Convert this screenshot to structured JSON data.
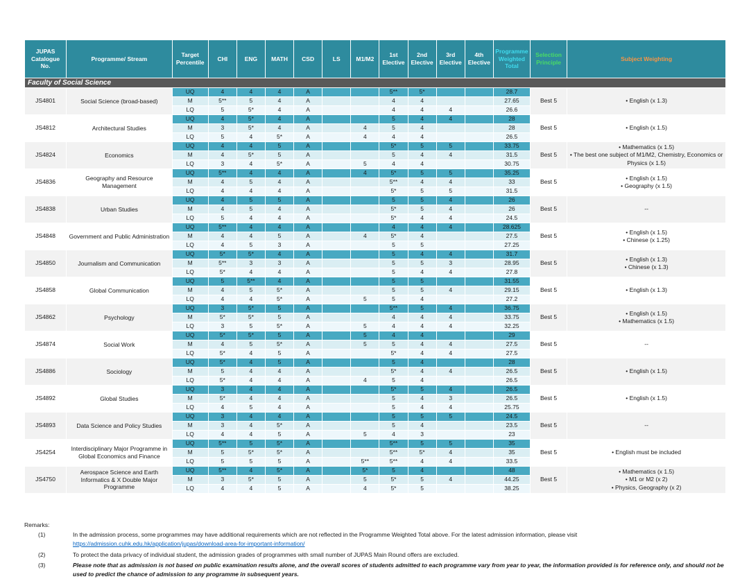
{
  "colors": {
    "header_bg": "#2E8B9E",
    "uq_bg": "#47A9C2",
    "m_bg": "#DAEEF3",
    "lq_bg": "#EDF7FB",
    "faculty_bg": "#595959",
    "accent_cyan": "#40DBEE",
    "accent_green": "#4ADB66",
    "accent_orange": "#F79646",
    "link_blue": "#0563C1"
  },
  "table": {
    "columns": [
      {
        "key": "code",
        "label": "JUPAS Catalogue No.",
        "accent": ""
      },
      {
        "key": "name",
        "label": "Programme/ Stream",
        "accent": ""
      },
      {
        "key": "target",
        "label": "Target Percentile",
        "accent": ""
      },
      {
        "key": "chi",
        "label": "CHI",
        "accent": ""
      },
      {
        "key": "eng",
        "label": "ENG",
        "accent": ""
      },
      {
        "key": "math",
        "label": "MATH",
        "accent": ""
      },
      {
        "key": "csd",
        "label": "CSD",
        "accent": ""
      },
      {
        "key": "ls",
        "label": "LS",
        "accent": ""
      },
      {
        "key": "m1m2",
        "label": "M1/M2",
        "accent": ""
      },
      {
        "key": "elective-1",
        "label": "1st Elective",
        "accent": ""
      },
      {
        "key": "elective-2",
        "label": "2nd Elective",
        "accent": ""
      },
      {
        "key": "elective-3",
        "label": "3rd Elective",
        "accent": ""
      },
      {
        "key": "elective-4",
        "label": "4th Elective",
        "accent": ""
      },
      {
        "key": "weighted-total",
        "label": "Programme Weighted Total",
        "accent": "cyan"
      },
      {
        "key": "selection",
        "label": "Selection Principle",
        "accent": "green"
      },
      {
        "key": "weighting",
        "label": "Subject Weighting",
        "accent": "orange"
      }
    ],
    "score_keys": [
      "chi",
      "eng",
      "math",
      "csd",
      "ls",
      "m1m2",
      "elective-1",
      "elective-2",
      "elective-3",
      "elective-4",
      "weighted-total"
    ],
    "faculty": "Faculty of Social Science",
    "programmes": [
      {
        "code": "JS4801",
        "name": "Social Science (broad-based)",
        "selection": "Best 5",
        "weighting": [
          "English (x 1.3)"
        ],
        "rows": [
          {
            "p": "UQ",
            "v": [
              "4",
              "4",
              "4",
              "A",
              "",
              "",
              "5**",
              "5*",
              "",
              "",
              "28.7"
            ]
          },
          {
            "p": "M",
            "v": [
              "5**",
              "5",
              "4",
              "A",
              "",
              "",
              "4",
              "4",
              "",
              "",
              "27.65"
            ]
          },
          {
            "p": "LQ",
            "v": [
              "5",
              "5*",
              "4",
              "A",
              "",
              "",
              "4",
              "4",
              "4",
              "",
              "26.6"
            ]
          }
        ]
      },
      {
        "code": "JS4812",
        "name": "Architectural Studies",
        "selection": "Best 5",
        "weighting": [
          "English (x 1.5)"
        ],
        "rows": [
          {
            "p": "UQ",
            "v": [
              "4",
              "5*",
              "4",
              "A",
              "",
              "",
              "5",
              "4",
              "4",
              "",
              "28"
            ]
          },
          {
            "p": "M",
            "v": [
              "3",
              "5*",
              "4",
              "A",
              "",
              "4",
              "5",
              "4",
              "",
              "",
              "28"
            ]
          },
          {
            "p": "LQ",
            "v": [
              "5",
              "4",
              "5*",
              "A",
              "",
              "4",
              "4",
              "4",
              "",
              "",
              "26.5"
            ]
          }
        ]
      },
      {
        "code": "JS4824",
        "name": "Economics",
        "selection": "Best 5",
        "weighting": [
          "Mathematics (x 1.5)",
          "The best one subject of M1/M2, Chemistry, Economics or Physics (x 1.5)"
        ],
        "rows": [
          {
            "p": "UQ",
            "v": [
              "4",
              "4",
              "5",
              "A",
              "",
              "",
              "5*",
              "5",
              "5",
              "",
              "33.75"
            ]
          },
          {
            "p": "M",
            "v": [
              "4",
              "5*",
              "5",
              "A",
              "",
              "",
              "5",
              "4",
              "4",
              "",
              "31.5"
            ]
          },
          {
            "p": "LQ",
            "v": [
              "3",
              "4",
              "5*",
              "A",
              "",
              "5",
              "4",
              "4",
              "",
              "",
              "30.75"
            ]
          }
        ]
      },
      {
        "code": "JS4836",
        "name": "Geography and Resource Management",
        "selection": "Best 5",
        "weighting": [
          "English (x 1.5)",
          "Geography (x 1.5)"
        ],
        "rows": [
          {
            "p": "UQ",
            "v": [
              "5**",
              "4",
              "4",
              "A",
              "",
              "4",
              "5*",
              "5",
              "5",
              "",
              "35.25"
            ]
          },
          {
            "p": "M",
            "v": [
              "4",
              "5",
              "4",
              "A",
              "",
              "",
              "5**",
              "4",
              "4",
              "",
              "33"
            ]
          },
          {
            "p": "LQ",
            "v": [
              "4",
              "4",
              "4",
              "A",
              "",
              "",
              "5*",
              "5",
              "5",
              "",
              "31.5"
            ]
          }
        ]
      },
      {
        "code": "JS4838",
        "name": "Urban Studies",
        "selection": "Best 5",
        "weighting": [
          "--"
        ],
        "rows": [
          {
            "p": "UQ",
            "v": [
              "4",
              "5",
              "5",
              "A",
              "",
              "",
              "5",
              "5",
              "4",
              "",
              "26"
            ]
          },
          {
            "p": "M",
            "v": [
              "4",
              "5",
              "4",
              "A",
              "",
              "",
              "5*",
              "5",
              "4",
              "",
              "26"
            ]
          },
          {
            "p": "LQ",
            "v": [
              "5",
              "4",
              "4",
              "A",
              "",
              "",
              "5*",
              "4",
              "4",
              "",
              "24.5"
            ]
          }
        ]
      },
      {
        "code": "JS4848",
        "name": "Government and Public Administration",
        "selection": "Best 5",
        "weighting": [
          "English (x 1.5)",
          "Chinese (x 1.25)"
        ],
        "rows": [
          {
            "p": "UQ",
            "v": [
              "5**",
              "4",
              "4",
              "A",
              "",
              "",
              "4",
              "4",
              "4",
              "",
              "28.625"
            ]
          },
          {
            "p": "M",
            "v": [
              "4",
              "4",
              "5",
              "A",
              "",
              "4",
              "5*",
              "4",
              "",
              "",
              "27.5"
            ]
          },
          {
            "p": "LQ",
            "v": [
              "4",
              "5",
              "3",
              "A",
              "",
              "",
              "5",
              "5",
              "",
              "",
              "27.25"
            ]
          }
        ]
      },
      {
        "code": "JS4850",
        "name": "Journalism and Communication",
        "selection": "Best 5",
        "weighting": [
          "English (x 1.3)",
          "Chinese (x 1.3)"
        ],
        "rows": [
          {
            "p": "UQ",
            "v": [
              "5*",
              "5*",
              "4",
              "A",
              "",
              "",
              "5",
              "4",
              "4",
              "",
              "31.7"
            ]
          },
          {
            "p": "M",
            "v": [
              "5**",
              "3",
              "3",
              "A",
              "",
              "",
              "5",
              "5",
              "3",
              "",
              "28.95"
            ]
          },
          {
            "p": "LQ",
            "v": [
              "5*",
              "4",
              "4",
              "A",
              "",
              "",
              "5",
              "4",
              "4",
              "",
              "27.8"
            ]
          }
        ]
      },
      {
        "code": "JS4858",
        "name": "Global Communication",
        "selection": "Best 5",
        "weighting": [
          "English (x 1.3)"
        ],
        "rows": [
          {
            "p": "UQ",
            "v": [
              "5",
              "5**",
              "4",
              "A",
              "",
              "",
              "5",
              "5",
              "",
              "",
              "31.55"
            ]
          },
          {
            "p": "M",
            "v": [
              "4",
              "5",
              "5*",
              "A",
              "",
              "",
              "5",
              "5",
              "4",
              "",
              "29.15"
            ]
          },
          {
            "p": "LQ",
            "v": [
              "4",
              "4",
              "5*",
              "A",
              "",
              "5",
              "5",
              "4",
              "",
              "",
              "27.2"
            ]
          }
        ]
      },
      {
        "code": "JS4862",
        "name": "Psychology",
        "selection": "Best 5",
        "weighting": [
          "English (x 1.5)",
          "Mathematics (x 1.5)"
        ],
        "rows": [
          {
            "p": "UQ",
            "v": [
              "3",
              "5*",
              "5",
              "A",
              "",
              "",
              "5**",
              "5",
              "4",
              "",
              "36.75"
            ]
          },
          {
            "p": "M",
            "v": [
              "5*",
              "5*",
              "5",
              "A",
              "",
              "",
              "4",
              "4",
              "4",
              "",
              "33.75"
            ]
          },
          {
            "p": "LQ",
            "v": [
              "3",
              "5",
              "5*",
              "A",
              "",
              "5",
              "4",
              "4",
              "4",
              "",
              "32.25"
            ]
          }
        ]
      },
      {
        "code": "JS4874",
        "name": "Social Work",
        "selection": "Best 5",
        "weighting": [
          "--"
        ],
        "rows": [
          {
            "p": "UQ",
            "v": [
              "5*",
              "5*",
              "5",
              "A",
              "",
              "5",
              "4",
              "4",
              "",
              "",
              "29"
            ]
          },
          {
            "p": "M",
            "v": [
              "4",
              "5",
              "5*",
              "A",
              "",
              "5",
              "5",
              "4",
              "4",
              "",
              "27.5"
            ]
          },
          {
            "p": "LQ",
            "v": [
              "5*",
              "4",
              "5",
              "A",
              "",
              "",
              "5*",
              "4",
              "4",
              "",
              "27.5"
            ]
          }
        ]
      },
      {
        "code": "JS4886",
        "name": "Sociology",
        "selection": "Best 5",
        "weighting": [
          "English (x 1.5)"
        ],
        "rows": [
          {
            "p": "UQ",
            "v": [
              "5*",
              "4",
              "5",
              "A",
              "",
              "",
              "5",
              "4",
              "",
              "",
              "28"
            ]
          },
          {
            "p": "M",
            "v": [
              "5",
              "4",
              "4",
              "A",
              "",
              "",
              "5*",
              "4",
              "4",
              "",
              "26.5"
            ]
          },
          {
            "p": "LQ",
            "v": [
              "5*",
              "4",
              "4",
              "A",
              "",
              "4",
              "5",
              "4",
              "",
              "",
              "26.5"
            ]
          }
        ]
      },
      {
        "code": "JS4892",
        "name": "Global Studies",
        "selection": "Best 5",
        "weighting": [
          "English (x 1.5)"
        ],
        "rows": [
          {
            "p": "UQ",
            "v": [
              "3",
              "4",
              "4",
              "A",
              "",
              "",
              "5*",
              "5",
              "4",
              "",
              "26.5"
            ]
          },
          {
            "p": "M",
            "v": [
              "5*",
              "4",
              "4",
              "A",
              "",
              "",
              "5",
              "4",
              "3",
              "",
              "26.5"
            ]
          },
          {
            "p": "LQ",
            "v": [
              "4",
              "5",
              "4",
              "A",
              "",
              "",
              "5",
              "4",
              "4",
              "",
              "25.75"
            ]
          }
        ]
      },
      {
        "code": "JS4893",
        "name": "Data Science and Policy Studies",
        "selection": "Best 5",
        "weighting": [
          "--"
        ],
        "rows": [
          {
            "p": "UQ",
            "v": [
              "3",
              "4",
              "4",
              "A",
              "",
              "",
              "5",
              "5",
              "5",
              "",
              "24.5"
            ]
          },
          {
            "p": "M",
            "v": [
              "3",
              "4",
              "5*",
              "A",
              "",
              "",
              "5",
              "4",
              "",
              "",
              "23.5"
            ]
          },
          {
            "p": "LQ",
            "v": [
              "4",
              "4",
              "5",
              "A",
              "",
              "5",
              "4",
              "3",
              "",
              "",
              "23"
            ]
          }
        ]
      },
      {
        "code": "JS4254",
        "name": "Interdisciplinary Major Programme in Global Economics and Finance",
        "selection": "Best 5",
        "weighting": [
          "English must be included"
        ],
        "rows": [
          {
            "p": "UQ",
            "v": [
              "5**",
              "5",
              "5*",
              "A",
              "",
              "",
              "5**",
              "5",
              "5",
              "",
              "35"
            ]
          },
          {
            "p": "M",
            "v": [
              "5",
              "5*",
              "5*",
              "A",
              "",
              "",
              "5**",
              "5*",
              "4",
              "",
              "35"
            ]
          },
          {
            "p": "LQ",
            "v": [
              "5",
              "5",
              "5",
              "A",
              "",
              "5**",
              "5**",
              "4",
              "4",
              "",
              "33.5"
            ]
          }
        ]
      },
      {
        "code": "JS4750",
        "name": "Aerospace Science and Earth Informatics & X Double Major Programme",
        "selection": "Best 5",
        "weighting": [
          "Mathematics (x 1.5)",
          "M1 or M2 (x 2)",
          "Physics, Geography (x 2)"
        ],
        "rows": [
          {
            "p": "UQ",
            "v": [
              "5**",
              "4",
              "5*",
              "A",
              "",
              "5*",
              "5",
              "4",
              "",
              "",
              "48"
            ]
          },
          {
            "p": "M",
            "v": [
              "3",
              "5*",
              "5",
              "A",
              "",
              "5",
              "5*",
              "5",
              "4",
              "",
              "44.25"
            ]
          },
          {
            "p": "LQ",
            "v": [
              "4",
              "4",
              "5",
              "A",
              "",
              "4",
              "5*",
              "5",
              "",
              "",
              "38.25"
            ]
          }
        ]
      }
    ]
  },
  "remarks": {
    "title": "Remarks:",
    "items": [
      {
        "number": "(1)",
        "text": "In the admission process, some programmes may have additional requirements which are not reflected in the Programme Weighted Total above. For the latest admission information, please visit",
        "link": "https://admission.cuhk.edu.hk/application/jupas/download-area-for-important-information/"
      },
      {
        "number": "(2)",
        "text": "To protect the data privacy of individual student, the admission grades of programmes with small number of JUPAS Main Round offers are excluded.",
        "link": ""
      },
      {
        "number": "(3)",
        "text": "Please note that as admission is not based on public examination results alone, and the overall scores of students admitted to each programme vary from year to year, the information provided is for reference only,  and should not be used to predict the chance of admission to any programme in subsequent years.",
        "link": ""
      }
    ]
  }
}
